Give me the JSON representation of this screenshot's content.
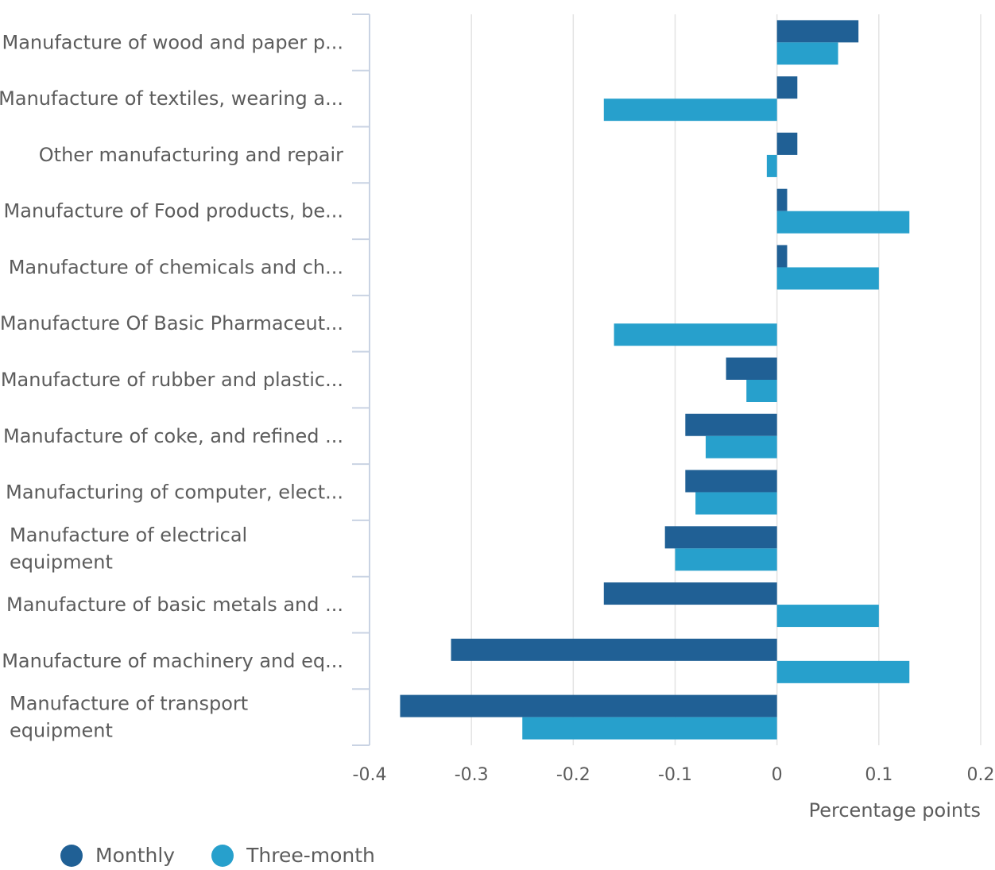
{
  "chart_data": {
    "type": "bar",
    "orientation": "horizontal",
    "categories": [
      [
        "Manufacture of wood and paper p..."
      ],
      [
        "Manufacture of textiles, wearing a..."
      ],
      [
        "Other manufacturing and repair"
      ],
      [
        "Manufacture of Food products, be..."
      ],
      [
        "Manufacture of chemicals and ch..."
      ],
      [
        "Manufacture Of Basic Pharmaceut..."
      ],
      [
        "Manufacture of rubber and plastic..."
      ],
      [
        "Manufacture of coke, and refined ..."
      ],
      [
        "Manufacturing of computer, elect..."
      ],
      [
        "Manufacture of electrical",
        "equipment"
      ],
      [
        "Manufacture of basic metals and ..."
      ],
      [
        "Manufacture of machinery and eq..."
      ],
      [
        "Manufacture of transport",
        "equipment"
      ]
    ],
    "series": [
      {
        "name": "Monthly",
        "color": "#206095",
        "values": [
          0.08,
          0.02,
          0.02,
          0.01,
          0.01,
          0.0,
          -0.05,
          -0.09,
          -0.09,
          -0.11,
          -0.17,
          -0.32,
          -0.37
        ]
      },
      {
        "name": "Three-month",
        "color": "#27a0cc",
        "values": [
          0.06,
          -0.17,
          -0.01,
          0.13,
          0.1,
          -0.16,
          -0.03,
          -0.07,
          -0.08,
          -0.1,
          0.1,
          0.13,
          -0.25
        ]
      }
    ],
    "xlim": [
      -0.4,
      0.2
    ],
    "xticks": [
      -0.4,
      -0.3,
      -0.2,
      -0.1,
      0,
      0.1,
      0.2
    ],
    "xtick_labels": [
      "-0.4",
      "-0.3",
      "-0.2",
      "-0.1",
      "0",
      "0.1",
      "0.2"
    ],
    "xlabel": "Percentage points",
    "ylabel": "",
    "grid": "vertical",
    "legend_position": "bottom-left"
  },
  "legend": {
    "items": [
      {
        "label": "Monthly",
        "color": "#206095"
      },
      {
        "label": "Three-month",
        "color": "#27a0cc"
      }
    ]
  }
}
